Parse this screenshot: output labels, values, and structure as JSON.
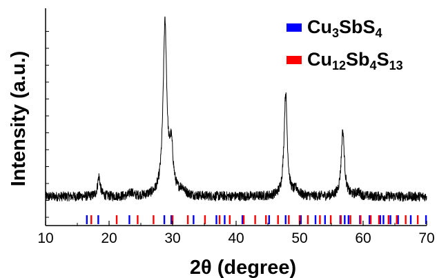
{
  "chart_data": {
    "type": "line",
    "xlabel": "2θ (degree)",
    "ylabel": "Intensity (a.u.)",
    "xlim": [
      10,
      70
    ],
    "ylim": [
      0,
      100
    ],
    "x_ticks": [
      "10",
      "20",
      "30",
      "40",
      "50",
      "60",
      "70"
    ],
    "x_tick_values": [
      10,
      20,
      30,
      40,
      50,
      60,
      70
    ],
    "legend_position": "top-right",
    "series": [
      {
        "name": "Cu3SbS4",
        "legend_parts": [
          [
            "Cu",
            ""
          ],
          [
            "3",
            "sub"
          ],
          [
            "SbS",
            ""
          ],
          [
            "4",
            "sub"
          ]
        ],
        "color": "#0000ff",
        "type": "reference-ticks",
        "positions": [
          16.5,
          18.3,
          23.2,
          28.7,
          29.8,
          33.3,
          36.9,
          38.2,
          41.0,
          45.2,
          47.8,
          50.2,
          52.5,
          54.0,
          56.4,
          57.1,
          57.7,
          59.5,
          61.0,
          62.7,
          63.2,
          64.3,
          65.5,
          67.5,
          69.9
        ]
      },
      {
        "name": "Cu12Sb4S13",
        "legend_parts": [
          [
            "Cu",
            ""
          ],
          [
            "12",
            "sub"
          ],
          [
            "Sb",
            ""
          ],
          [
            "4",
            "sub"
          ],
          [
            "S",
            ""
          ],
          [
            "13",
            "sub"
          ]
        ],
        "color": "#ff0000",
        "type": "reference-ticks",
        "positions": [
          17.2,
          21.2,
          24.5,
          27.0,
          30.0,
          32.4,
          35.1,
          37.4,
          39.0,
          41.2,
          43.0,
          44.7,
          46.6,
          48.3,
          50.0,
          51.3,
          53.2,
          54.9,
          56.5,
          58.0,
          59.6,
          61.2,
          62.5,
          64.0,
          65.3,
          66.7,
          68.6
        ]
      }
    ],
    "pattern": {
      "color": "#000000",
      "baseline": 8,
      "baseline_start": 3,
      "noise": 2.5,
      "peaks": [
        {
          "x": 18.4,
          "height": 10,
          "width": 0.25
        },
        {
          "x": 23.5,
          "height": 2,
          "width": 0.3
        },
        {
          "x": 28.8,
          "height": 86,
          "width": 0.35
        },
        {
          "x": 29.8,
          "height": 22,
          "width": 0.35
        },
        {
          "x": 31.5,
          "height": 3,
          "width": 0.5
        },
        {
          "x": 47.8,
          "height": 52,
          "width": 0.3
        },
        {
          "x": 49.5,
          "height": 3,
          "width": 0.4
        },
        {
          "x": 56.8,
          "height": 33,
          "width": 0.3
        },
        {
          "x": 59.2,
          "height": 2,
          "width": 0.4
        }
      ]
    }
  }
}
